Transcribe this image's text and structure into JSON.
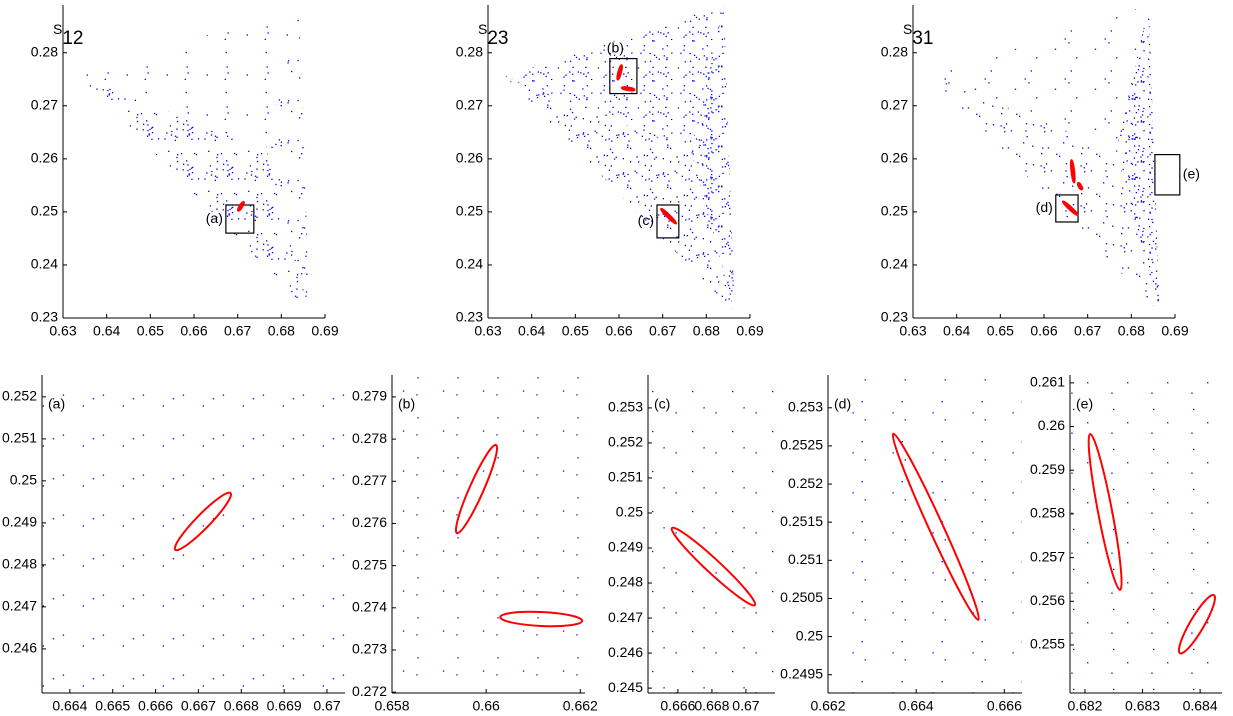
{
  "chart_data": [
    {
      "type": "scatter",
      "title": {
        "text": "S",
        "subscript": "12"
      },
      "xlim": [
        0.63,
        0.69
      ],
      "ylim": [
        0.23,
        0.289
      ],
      "xticks": [
        0.63,
        0.64,
        0.65,
        0.66,
        0.67,
        0.68,
        0.69
      ],
      "yticks": [
        0.23,
        0.24,
        0.25,
        0.26,
        0.27,
        0.28
      ],
      "color": "#0000ff",
      "ellipse_color": "#ff0000",
      "regions": [
        {
          "density": "sparse",
          "x": [
            0.634,
            0.684,
            0.6765
          ],
          "y": [
            0.2755,
            0.289,
            0.2615
          ]
        },
        {
          "density": "dense",
          "x": [
            0.634,
            0.6765,
            0.6865
          ],
          "y": [
            0.2755,
            0.2615,
            0.231
          ]
        },
        {
          "density": "medium",
          "x": [
            0.6765,
            0.684,
            0.6865
          ],
          "y": [
            0.2615,
            0.289,
            0.231
          ]
        }
      ],
      "ellipses": [
        {
          "x": [
            0.6701,
            0.6714
          ],
          "y": [
            0.2502,
            0.2519
          ]
        }
      ],
      "boxes": [
        {
          "label": "(a)",
          "side": "left",
          "x": [
            0.6673,
            0.6737
          ],
          "y": [
            0.246,
            0.2513
          ]
        }
      ]
    },
    {
      "type": "scatter",
      "title": {
        "text": "S",
        "subscript": "23"
      },
      "xlim": [
        0.63,
        0.69
      ],
      "ylim": [
        0.23,
        0.289
      ],
      "xticks": [
        0.63,
        0.64,
        0.65,
        0.66,
        0.67,
        0.68,
        0.69
      ],
      "yticks": [
        0.23,
        0.24,
        0.25,
        0.26,
        0.27,
        0.28
      ],
      "color": "#0000ff",
      "ellipse_color": "#ff0000",
      "regions": [
        {
          "density": "dense",
          "x": [
            0.634,
            0.684,
            0.6765
          ],
          "y": [
            0.2755,
            0.289,
            0.2615
          ]
        },
        {
          "density": "dense",
          "x": [
            0.634,
            0.6765,
            0.6865
          ],
          "y": [
            0.2755,
            0.2615,
            0.231
          ]
        },
        {
          "density": "verydense",
          "x": [
            0.6765,
            0.684,
            0.6865
          ],
          "y": [
            0.2615,
            0.289,
            0.231
          ]
        }
      ],
      "ellipses": [
        {
          "x": [
            0.6597,
            0.6606
          ],
          "y": [
            0.2749,
            0.2777
          ]
        },
        {
          "x": [
            0.6606,
            0.6636
          ],
          "y": [
            0.2734,
            0.273
          ]
        },
        {
          "x": [
            0.6696,
            0.6731
          ],
          "y": [
            0.2506,
            0.2478
          ]
        }
      ],
      "boxes": [
        {
          "label": "(b)",
          "side": "top",
          "x": [
            0.6579,
            0.6641
          ],
          "y": [
            0.2723,
            0.2789
          ]
        },
        {
          "label": "(c)",
          "side": "left",
          "x": [
            0.6687,
            0.6737
          ],
          "y": [
            0.2451,
            0.2513
          ]
        }
      ]
    },
    {
      "type": "scatter",
      "title": {
        "text": "S",
        "subscript": "31"
      },
      "xlim": [
        0.63,
        0.69
      ],
      "ylim": [
        0.23,
        0.289
      ],
      "xticks": [
        0.63,
        0.64,
        0.65,
        0.66,
        0.67,
        0.68,
        0.69
      ],
      "yticks": [
        0.23,
        0.24,
        0.25,
        0.26,
        0.27,
        0.28
      ],
      "color": "#0000ff",
      "ellipse_color": "#ff0000",
      "regions": [
        {
          "density": "sparse",
          "x": [
            0.634,
            0.684,
            0.6765
          ],
          "y": [
            0.2755,
            0.289,
            0.2615
          ]
        },
        {
          "density": "medium",
          "x": [
            0.634,
            0.6765,
            0.6865
          ],
          "y": [
            0.2755,
            0.2615,
            0.231
          ]
        },
        {
          "density": "verydense",
          "x": [
            0.6765,
            0.684,
            0.6865
          ],
          "y": [
            0.2615,
            0.289,
            0.231
          ]
        }
      ],
      "ellipses": [
        {
          "x": [
            0.6643,
            0.6677
          ],
          "y": [
            0.252,
            0.2494
          ]
        },
        {
          "x": [
            0.6663,
            0.6669
          ],
          "y": [
            0.2598,
            0.2555
          ]
        },
        {
          "x": [
            0.6678,
            0.6687
          ],
          "y": [
            0.2555,
            0.2542
          ]
        }
      ],
      "boxes": [
        {
          "label": "(d)",
          "side": "left",
          "x": [
            0.6627,
            0.6678
          ],
          "y": [
            0.2481,
            0.2532
          ]
        },
        {
          "label": "(e)",
          "side": "right",
          "x": [
            0.6854,
            0.6911
          ],
          "y": [
            0.2532,
            0.2608
          ]
        }
      ]
    },
    {
      "type": "zoom",
      "label": "(a)",
      "xlim": [
        0.66335,
        0.67042
      ],
      "ylim": [
        0.24495,
        0.25252
      ],
      "xticks": [
        0.664,
        0.665,
        0.666,
        0.667,
        0.668,
        0.669,
        0.67
      ],
      "yticks": [
        0.246,
        0.247,
        0.248,
        0.249,
        0.25,
        0.251,
        0.252
      ],
      "color": "#0000ff",
      "ellipse_color": "#ff0000",
      "ellipses": [
        {
          "x": [
            0.66646,
            0.66775
          ],
          "y": [
            0.24836,
            0.24971
          ]
        }
      ]
    },
    {
      "type": "zoom",
      "label": "(b)",
      "xlim": [
        0.658,
        0.6621
      ],
      "ylim": [
        0.27198,
        0.27952
      ],
      "xticks": [
        0.658,
        0.66,
        0.662
      ],
      "yticks": [
        0.272,
        0.273,
        0.274,
        0.275,
        0.276,
        0.277,
        0.278,
        0.279
      ],
      "color": "#0000ff",
      "ellipse_color": "#ff0000",
      "ellipses": [
        {
          "x": [
            0.65938,
            0.66021
          ],
          "y": [
            0.27577,
            0.27786
          ]
        },
        {
          "x": [
            0.6603,
            0.66204
          ],
          "y": [
            0.27378,
            0.27369
          ]
        }
      ]
    },
    {
      "type": "zoom",
      "label": "(c)",
      "xlim": [
        0.66424,
        0.67171
      ],
      "ylim": [
        0.24486,
        0.25394
      ],
      "xticks": [
        0.666,
        0.668,
        0.67
      ],
      "yticks": [
        0.245,
        0.246,
        0.247,
        0.248,
        0.249,
        0.25,
        0.251,
        0.252,
        0.253
      ],
      "color": "#0000ff",
      "ellipse_color": "#ff0000",
      "ellipses": [
        {
          "x": [
            0.66565,
            0.67053
          ],
          "y": [
            0.24957,
            0.24737
          ]
        }
      ]
    },
    {
      "type": "zoom",
      "label": "(d)",
      "xlim": [
        0.662,
        0.6664
      ],
      "ylim": [
        0.24926,
        0.25343
      ],
      "xticks": [
        0.662,
        0.664,
        0.666
      ],
      "yticks": [
        0.2495,
        0.25,
        0.2505,
        0.251,
        0.2515,
        0.252,
        0.2525,
        0.253
      ],
      "color": "#0000ff",
      "ellipse_color": "#ff0000",
      "ellipses": [
        {
          "x": [
            0.66348,
            0.66541
          ],
          "y": [
            0.25266,
            0.25022
          ]
        }
      ]
    },
    {
      "type": "zoom",
      "label": "(e)",
      "xlim": [
        0.68174,
        0.68438
      ],
      "ylim": [
        0.2539,
        0.26118
      ],
      "xticks": [
        0.682,
        0.683,
        0.684
      ],
      "yticks": [
        0.255,
        0.256,
        0.257,
        0.258,
        0.259,
        0.26,
        0.261
      ],
      "color": "#0000ff",
      "ellipse_color": "#ff0000",
      "ellipses": [
        {
          "x": [
            0.68209,
            0.68261
          ],
          "y": [
            0.25983,
            0.25626
          ]
        },
        {
          "x": [
            0.68365,
            0.68424
          ],
          "y": [
            0.25481,
            0.25614
          ]
        }
      ]
    }
  ]
}
